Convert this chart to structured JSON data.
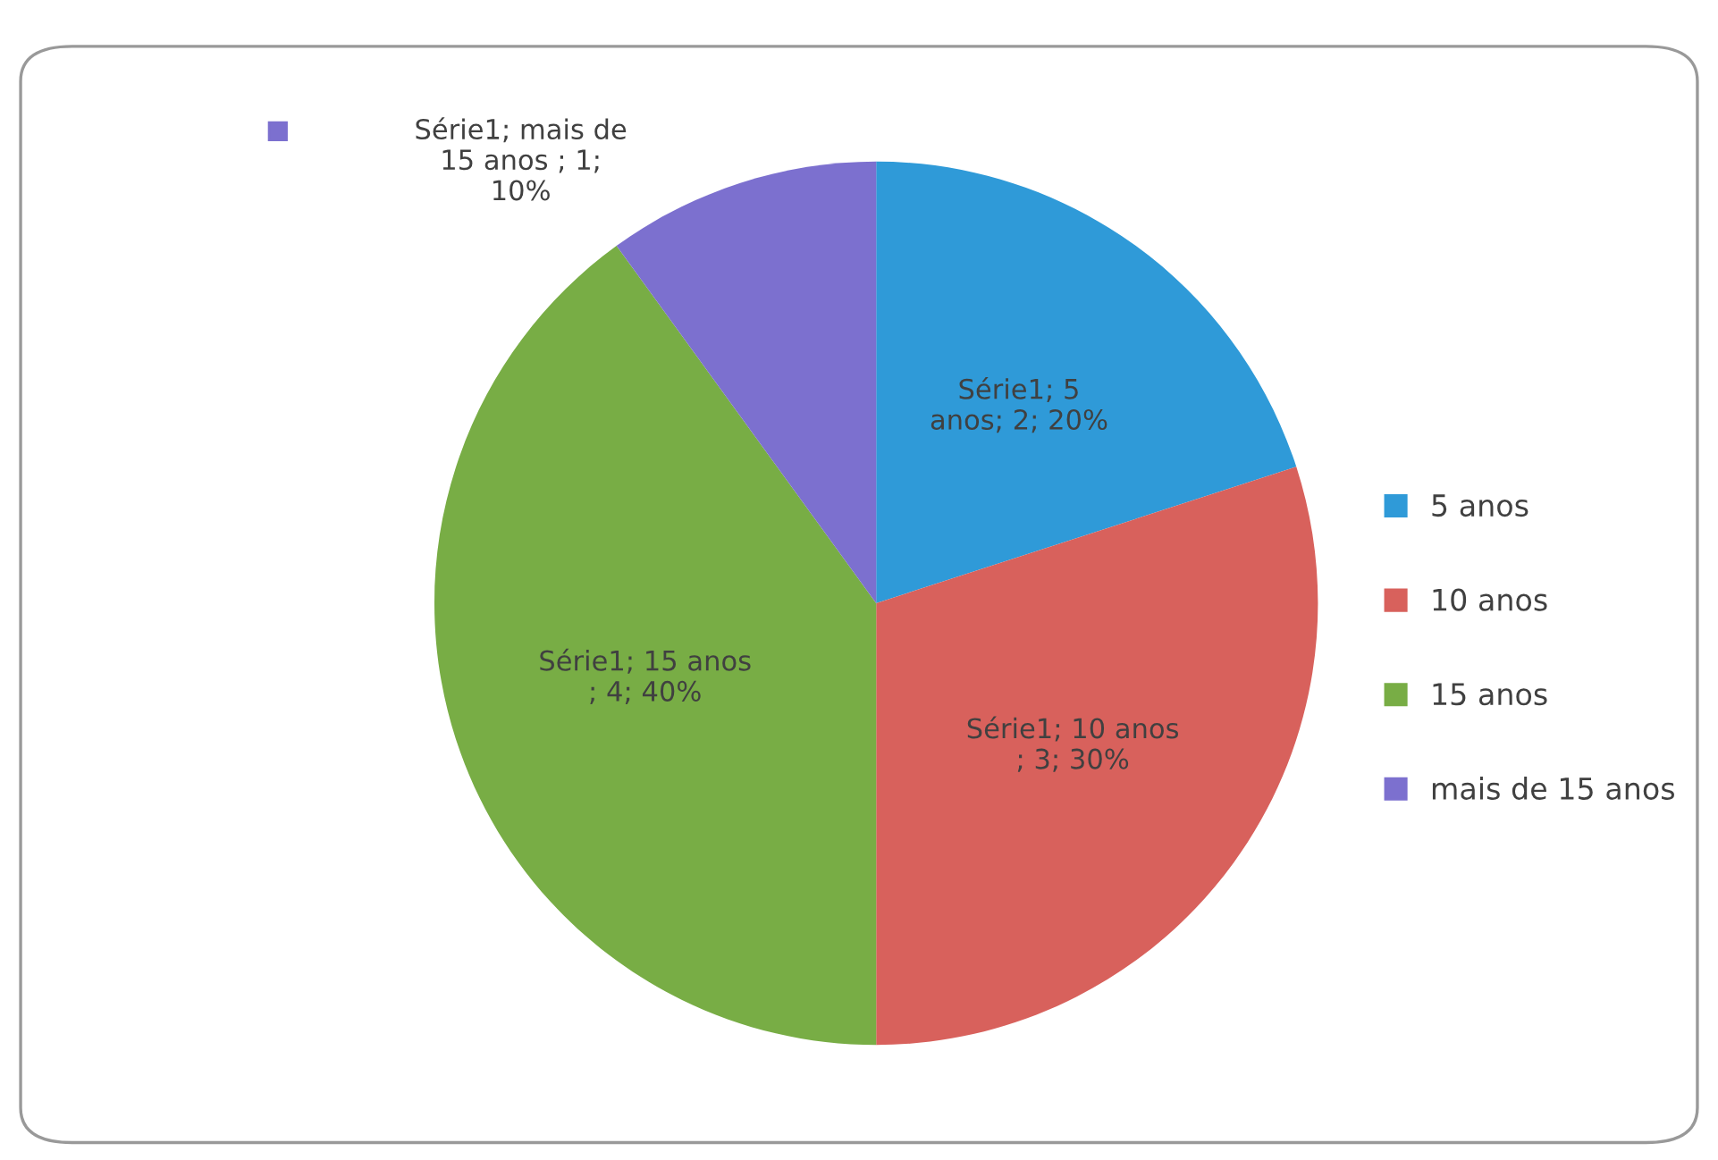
{
  "chart_data": {
    "type": "pie",
    "categories": [
      "5 anos",
      "10 anos",
      "15 anos",
      "mais de 15 anos"
    ],
    "values": [
      2,
      3,
      4,
      1
    ],
    "colors": [
      "#2f9ad8",
      "#d8615c",
      "#78ad45",
      "#7c70cf"
    ],
    "value_labels": [
      "Série1; 5\nanos; 2; 20%",
      "Série1; 10 anos\n; 3; 30%",
      "Série1; 15 anos\n; 4; 40%",
      "Série1; mais de\n15 anos ; 1;\n10%"
    ],
    "legend": "right"
  }
}
